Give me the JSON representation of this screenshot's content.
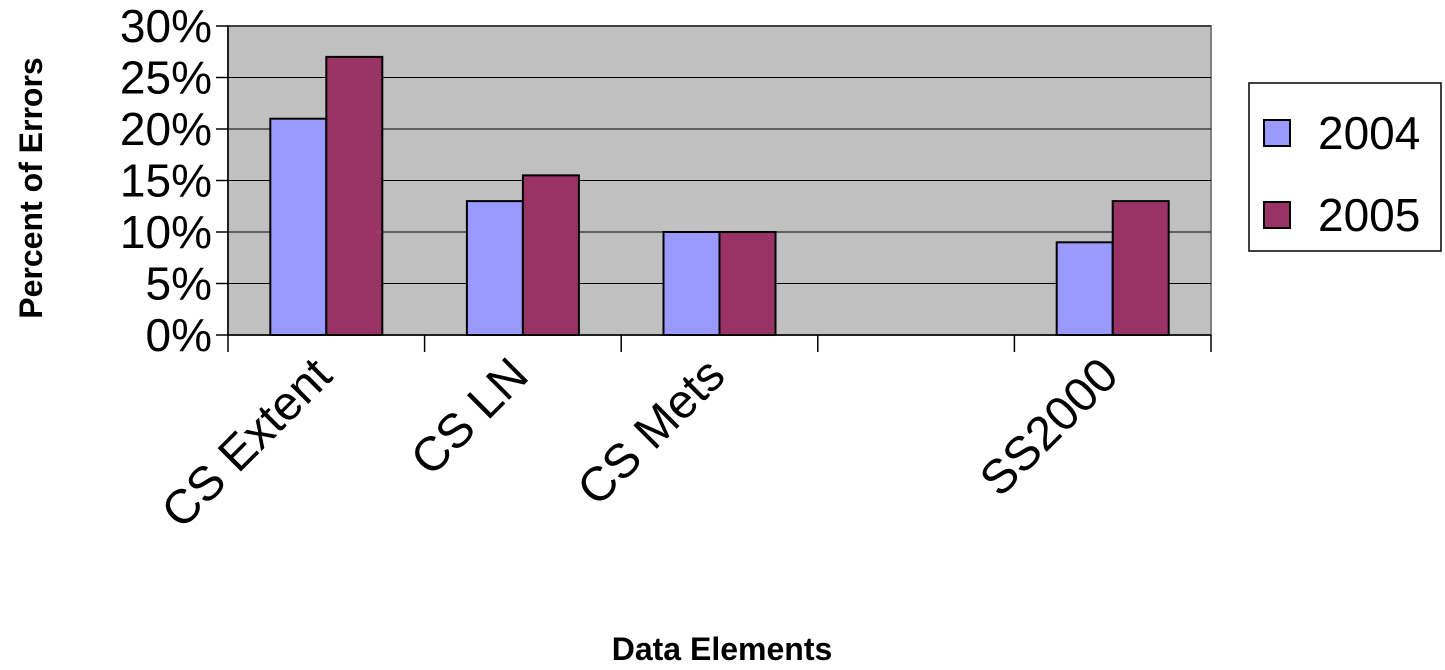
{
  "chart_data": {
    "type": "bar",
    "title": "",
    "xlabel": "Data Elements",
    "ylabel": "Percent of Errors",
    "categories": [
      "CS Extent",
      "CS LN",
      "CS Mets",
      "",
      "SS2000"
    ],
    "series": [
      {
        "name": "2004",
        "values": [
          21,
          13,
          10,
          null,
          9
        ],
        "color": "#9999ff"
      },
      {
        "name": "2005",
        "values": [
          27,
          15.5,
          10,
          null,
          13
        ],
        "color": "#993366"
      }
    ],
    "ylim": [
      0,
      30
    ],
    "yticks": [
      0,
      5,
      10,
      15,
      20,
      25,
      30
    ],
    "ytick_labels": [
      "0%",
      "5%",
      "10%",
      "15%",
      "20%",
      "25%",
      "30%"
    ],
    "plot_background": "#c0c0c0",
    "grid": true,
    "legend": "right"
  }
}
